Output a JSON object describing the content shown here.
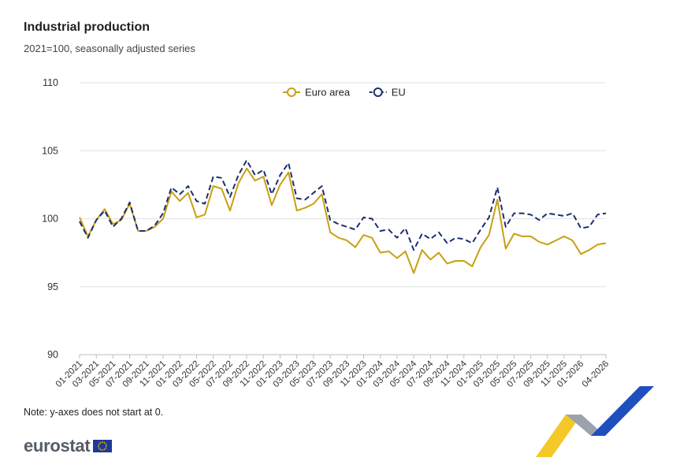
{
  "title": "Industrial production",
  "subtitle": "2021=100, seasonally adjusted series",
  "note": "Note: y-axes does not start at 0.",
  "logo": {
    "text": "eurostat"
  },
  "colors": {
    "euro_area": "#c8a012",
    "eu": "#1b2f6e",
    "grid": "#e3e3e3"
  },
  "chart_data": {
    "type": "line",
    "xlabel": "",
    "ylabel": "",
    "ylim": [
      90,
      110
    ],
    "yticks": [
      90,
      95,
      100,
      105,
      110
    ],
    "legend_position": "top-center",
    "grid": true,
    "x": [
      "01-2021",
      "02-2021",
      "03-2021",
      "04-2021",
      "05-2021",
      "06-2021",
      "07-2021",
      "08-2021",
      "09-2021",
      "10-2021",
      "11-2021",
      "12-2021",
      "01-2022",
      "02-2022",
      "03-2022",
      "04-2022",
      "05-2022",
      "06-2022",
      "07-2022",
      "08-2022",
      "09-2022",
      "10-2022",
      "11-2022",
      "12-2022",
      "01-2023",
      "02-2023",
      "03-2023",
      "04-2023",
      "05-2023",
      "06-2023",
      "07-2023",
      "08-2023",
      "09-2023",
      "10-2023",
      "11-2023",
      "12-2023",
      "01-2024",
      "02-2024",
      "03-2024",
      "04-2024",
      "05-2024",
      "06-2024",
      "07-2024",
      "08-2024",
      "09-2024",
      "10-2024",
      "11-2024",
      "12-2024",
      "01-2025",
      "02-2025",
      "03-2025",
      "04-2025",
      "05-2025",
      "06-2025",
      "07-2025",
      "08-2025",
      "09-2025",
      "10-2025",
      "11-2025",
      "12-2025",
      "01-2026",
      "02-2026",
      "03-2026",
      "04-2026"
    ],
    "xtick_labels": [
      "01-2021",
      "03-2021",
      "05-2021",
      "07-2021",
      "09-2021",
      "11-2021",
      "01-2022",
      "03-2022",
      "05-2022",
      "07-2022",
      "09-2022",
      "11-2022",
      "01-2023",
      "03-2023",
      "05-2023",
      "07-2023",
      "09-2023",
      "11-2023",
      "01-2024",
      "03-2024",
      "05-2024",
      "07-2024",
      "09-2024",
      "11-2024",
      "01-2025",
      "03-2025",
      "05-2025",
      "07-2025",
      "09-2025",
      "11-2025",
      "01-2026",
      "04-2026"
    ],
    "series": [
      {
        "name": "Euro area",
        "style": "solid",
        "values": [
          100.1,
          98.7,
          99.9,
          100.7,
          99.6,
          99.9,
          101.1,
          99.1,
          99.1,
          99.4,
          100.0,
          102.0,
          101.3,
          101.9,
          100.1,
          100.3,
          102.4,
          102.2,
          100.6,
          102.6,
          103.7,
          102.8,
          103.1,
          101.0,
          102.5,
          103.4,
          100.6,
          100.8,
          101.1,
          101.8,
          99.0,
          98.6,
          98.4,
          97.9,
          98.8,
          98.6,
          97.5,
          97.6,
          97.1,
          97.6,
          96.0,
          97.7,
          97.0,
          97.5,
          96.7,
          96.9,
          96.9,
          96.5,
          97.9,
          98.8,
          101.4,
          97.8,
          98.9,
          98.7,
          98.7,
          98.3,
          98.1,
          98.4,
          98.7,
          98.4,
          97.4,
          97.7,
          98.1,
          98.2
        ]
      },
      {
        "name": "EU",
        "style": "dashed",
        "values": [
          99.8,
          98.6,
          99.9,
          100.6,
          99.4,
          100.0,
          101.2,
          99.1,
          99.1,
          99.5,
          100.4,
          102.3,
          101.8,
          102.4,
          101.3,
          101.1,
          103.1,
          103.0,
          101.6,
          103.2,
          104.3,
          103.2,
          103.6,
          101.8,
          103.2,
          104.1,
          101.5,
          101.4,
          101.9,
          102.4,
          99.9,
          99.6,
          99.4,
          99.2,
          100.1,
          100.0,
          99.1,
          99.2,
          98.6,
          99.3,
          97.7,
          98.9,
          98.5,
          99.0,
          98.2,
          98.6,
          98.5,
          98.2,
          99.2,
          100.1,
          102.3,
          99.4,
          100.4,
          100.4,
          100.3,
          99.9,
          100.4,
          100.3,
          100.2,
          100.4,
          99.3,
          99.4,
          100.3,
          100.4
        ]
      }
    ]
  }
}
